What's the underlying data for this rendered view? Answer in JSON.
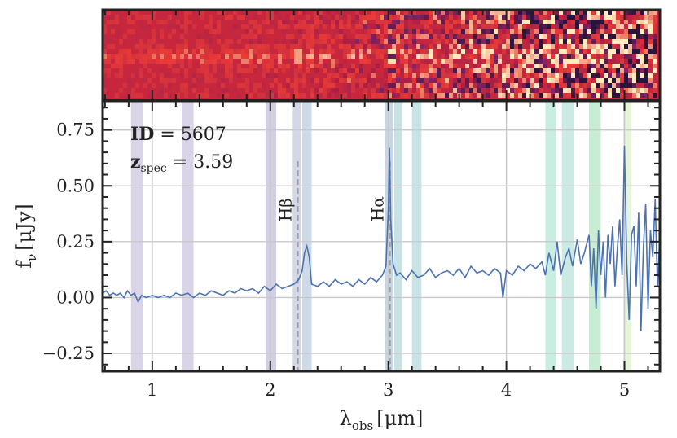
{
  "chart_data": {
    "type": "line",
    "title": "",
    "xlabel": "λ",
    "xlabel_sub": "obs",
    "xlabel_unit": "[μm]",
    "ylabel": "f",
    "ylabel_sub": "ν",
    "ylabel_unit": "[μJy]",
    "xlim": [
      0.58,
      5.3
    ],
    "ylim": [
      -0.33,
      0.88
    ],
    "x_ticks": [
      1,
      2,
      3,
      4,
      5
    ],
    "y_ticks": [
      -0.25,
      0.0,
      0.25,
      0.5,
      0.75
    ],
    "x_tick_labels": [
      "1",
      "2",
      "3",
      "4",
      "5"
    ],
    "y_tick_labels": [
      "−0.25",
      "0.00",
      "0.25",
      "0.50",
      "0.75"
    ],
    "grid": true,
    "annotation": {
      "id_label": "ID",
      "id_eq": " = 5607",
      "z_label": "z",
      "z_sub": "spec",
      "z_eq": " = 3.59"
    },
    "emission_lines": [
      {
        "name": "Hβ",
        "wavelength": 2.232
      },
      {
        "name": "Hα",
        "wavelength": 3.013
      }
    ],
    "filter_bands": [
      {
        "x0": 0.82,
        "x1": 0.92,
        "color": "#9a8ebf"
      },
      {
        "x0": 1.25,
        "x1": 1.35,
        "color": "#9a8ebf"
      },
      {
        "x0": 1.96,
        "x1": 2.05,
        "color": "#8a80b8"
      },
      {
        "x0": 2.19,
        "x1": 2.26,
        "color": "#8f95c0"
      },
      {
        "x0": 2.27,
        "x1": 2.35,
        "color": "#7f9fc4"
      },
      {
        "x0": 2.97,
        "x1": 3.04,
        "color": "#6f93b8"
      },
      {
        "x0": 3.05,
        "x1": 3.12,
        "color": "#6fb0b8"
      },
      {
        "x0": 3.2,
        "x1": 3.28,
        "color": "#70b4b8"
      },
      {
        "x0": 4.33,
        "x1": 4.42,
        "color": "#6fcfb0"
      },
      {
        "x0": 4.47,
        "x1": 4.57,
        "color": "#78c9b8"
      },
      {
        "x0": 4.7,
        "x1": 4.8,
        "color": "#6fd08c"
      },
      {
        "x0": 4.99,
        "x1": 5.06,
        "color": "#b8e6a0"
      }
    ],
    "series": [
      {
        "color": "#4c72b0",
        "x": [
          0.58,
          0.61,
          0.64,
          0.67,
          0.7,
          0.73,
          0.76,
          0.79,
          0.82,
          0.85,
          0.88,
          0.91,
          0.95,
          1.0,
          1.05,
          1.1,
          1.15,
          1.2,
          1.25,
          1.3,
          1.35,
          1.4,
          1.45,
          1.5,
          1.55,
          1.6,
          1.65,
          1.7,
          1.75,
          1.8,
          1.85,
          1.9,
          1.95,
          2.0,
          2.05,
          2.1,
          2.15,
          2.2,
          2.24,
          2.27,
          2.29,
          2.31,
          2.33,
          2.35,
          2.4,
          2.45,
          2.5,
          2.55,
          2.6,
          2.65,
          2.7,
          2.75,
          2.8,
          2.85,
          2.9,
          2.95,
          2.98,
          3.0,
          3.01,
          3.02,
          3.04,
          3.07,
          3.1,
          3.15,
          3.2,
          3.25,
          3.3,
          3.35,
          3.4,
          3.45,
          3.5,
          3.55,
          3.6,
          3.65,
          3.7,
          3.75,
          3.8,
          3.85,
          3.9,
          3.95,
          3.97,
          4.0,
          4.05,
          4.1,
          4.15,
          4.2,
          4.25,
          4.3,
          4.33,
          4.36,
          4.4,
          4.43,
          4.46,
          4.5,
          4.53,
          4.56,
          4.6,
          4.63,
          4.66,
          4.7,
          4.72,
          4.74,
          4.76,
          4.78,
          4.8,
          4.82,
          4.84,
          4.86,
          4.88,
          4.9,
          4.92,
          4.94,
          4.96,
          4.98,
          5.0,
          5.02,
          5.04,
          5.06,
          5.08,
          5.1,
          5.12,
          5.14,
          5.16,
          5.18,
          5.2,
          5.22,
          5.24,
          5.26,
          5.28,
          5.3
        ],
        "y": [
          0.02,
          0.03,
          0.01,
          0.02,
          0.01,
          0.02,
          0.0,
          0.03,
          0.01,
          0.02,
          -0.02,
          0.01,
          0.0,
          0.01,
          0.0,
          0.01,
          0.0,
          0.02,
          0.01,
          0.02,
          0.0,
          0.02,
          0.01,
          0.03,
          0.02,
          0.01,
          0.03,
          0.02,
          0.04,
          0.03,
          0.04,
          0.02,
          0.05,
          0.03,
          0.06,
          0.04,
          0.05,
          0.06,
          0.08,
          0.12,
          0.2,
          0.23,
          0.18,
          0.06,
          0.05,
          0.07,
          0.05,
          0.08,
          0.06,
          0.07,
          0.05,
          0.08,
          0.06,
          0.09,
          0.07,
          0.1,
          0.14,
          0.4,
          0.67,
          0.35,
          0.15,
          0.1,
          0.11,
          0.08,
          0.12,
          0.09,
          0.1,
          0.13,
          0.09,
          0.11,
          0.12,
          0.1,
          0.13,
          0.09,
          0.14,
          0.11,
          0.12,
          0.1,
          0.13,
          0.11,
          0.0,
          0.12,
          0.1,
          0.14,
          0.12,
          0.15,
          0.13,
          0.16,
          0.1,
          0.2,
          0.12,
          0.25,
          0.1,
          0.18,
          0.22,
          0.14,
          0.26,
          0.15,
          0.2,
          0.28,
          0.05,
          0.22,
          -0.05,
          0.3,
          0.1,
          0.25,
          0.0,
          0.28,
          0.15,
          0.32,
          0.05,
          0.22,
          0.35,
          0.1,
          0.68,
          0.15,
          -0.1,
          0.28,
          0.32,
          0.05,
          0.38,
          -0.15,
          0.22,
          0.42,
          -0.05,
          0.3,
          0.18,
          0.44,
          0.05,
          0.28
        ]
      }
    ]
  }
}
